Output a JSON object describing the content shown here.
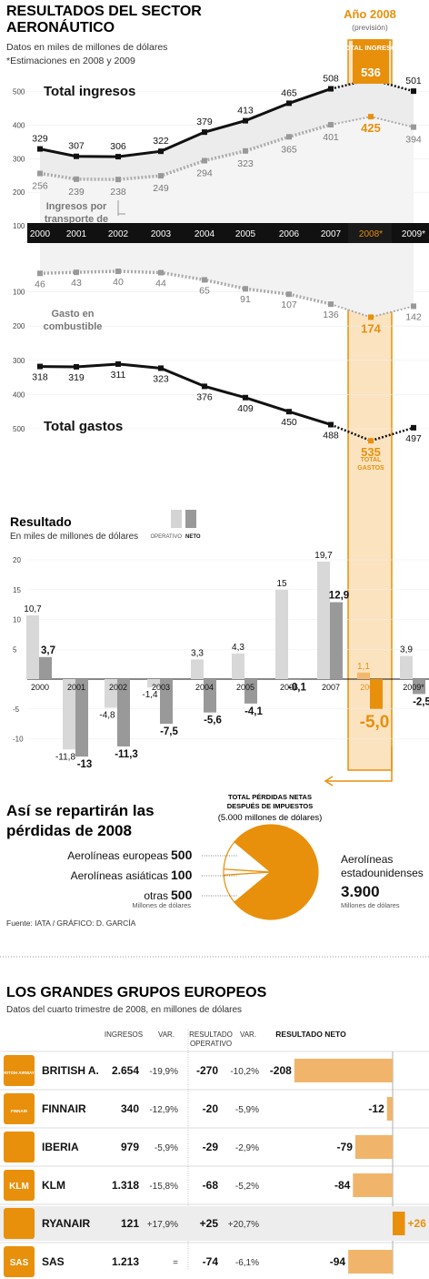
{
  "header": {
    "title_line1": "RESULTADOS DEL SECTOR",
    "title_line2": "AERONÁUTICO",
    "subtitle1": "Datos en miles de millones de dólares",
    "subtitle2": "*Estimaciones en 2008 y 2009",
    "highlight_title": "Año 2008",
    "highlight_sub": "(previsión)"
  },
  "colors": {
    "accent": "#e8900c",
    "accent_fill": "#fbe3c0",
    "dark": "#111111",
    "gray": "#999999",
    "light_gray": "#cfcfcf",
    "band": "#111111"
  },
  "chart_data": [
    {
      "type": "line",
      "x": [
        "2000",
        "2001",
        "2002",
        "2003",
        "2004",
        "2005",
        "2006",
        "2007",
        "2008*",
        "2009*"
      ],
      "ylim": [
        0,
        550
      ],
      "yticks": [
        "100",
        "200",
        "300",
        "400",
        "500"
      ],
      "series": [
        {
          "name": "Total ingresos",
          "values": [
            329,
            307,
            306,
            322,
            379,
            413,
            465,
            508,
            536,
            501
          ]
        },
        {
          "name": "Ingresos por transporte de pasajeros",
          "values": [
            256,
            239,
            238,
            249,
            294,
            323,
            365,
            401,
            425,
            394
          ]
        }
      ],
      "annotations": {
        "total_label": "TOTAL INGRESOS",
        "passenger_label": [
          "Ingresos por",
          "transporte de",
          "pasajeros"
        ]
      }
    },
    {
      "type": "line",
      "x": [
        "2000",
        "2001",
        "2002",
        "2003",
        "2004",
        "2005",
        "2006",
        "2007",
        "2008*",
        "2009*"
      ],
      "ylim": [
        0,
        550
      ],
      "yticks": [
        "100",
        "200",
        "300",
        "400",
        "500"
      ],
      "series": [
        {
          "name": "Total gastos",
          "values": [
            318,
            319,
            311,
            323,
            376,
            409,
            450,
            488,
            535,
            497
          ]
        },
        {
          "name": "Gasto en combustible",
          "values": [
            46,
            43,
            40,
            44,
            65,
            91,
            107,
            136,
            174,
            142
          ]
        }
      ],
      "annotations": {
        "total_label": [
          "TOTAL",
          "GASTOS"
        ],
        "fuel_label": [
          "Gasto en",
          "combustible"
        ]
      }
    },
    {
      "type": "bar",
      "title": "Resultado",
      "subtitle": "En miles de millones de dólares",
      "categories": [
        "2000",
        "2001",
        "2002",
        "2003",
        "2004",
        "2005",
        "2006",
        "2007",
        "2008*",
        "2009*"
      ],
      "legend": [
        "OPERATIVO",
        "NETO"
      ],
      "yticks": [
        "20",
        "15",
        "10",
        "5",
        "-5",
        "-10"
      ],
      "series": [
        {
          "name": "OPERATIVO",
          "values": [
            10.7,
            -11.8,
            -4.8,
            -1.4,
            3.3,
            4.3,
            15,
            19.7,
            1.1,
            3.9
          ],
          "labels": [
            "10,7",
            "-11,8",
            "-4,8",
            "-1,4",
            "3,3",
            "4,3",
            "15",
            "19,7",
            "1,1",
            "3,9"
          ]
        },
        {
          "name": "NETO",
          "values": [
            3.7,
            -13,
            -11.3,
            -7.5,
            -5.6,
            -4.1,
            -0.1,
            12.9,
            -5.0,
            -2.5
          ],
          "labels": [
            "3,7",
            "-13",
            "-11,3",
            "-7,5",
            "-5,6",
            "-4,1",
            "-0,1",
            "12,9",
            "-5,0",
            "-2,5"
          ]
        }
      ]
    },
    {
      "type": "pie",
      "title": [
        "Así se repartirán las",
        "pérdidas de 2008"
      ],
      "header": [
        "TOTAL PÉRDIDAS NETAS",
        "DESPUÉS DE IMPUESTOS",
        "(5.000 millones de dólares)"
      ],
      "slices": [
        {
          "label": "Aerolíneas europeas",
          "value": 500,
          "value_label": "500"
        },
        {
          "label": "Aerolíneas asiáticas",
          "value": 100,
          "value_label": "100"
        },
        {
          "label": "otras",
          "value": 500,
          "value_label": "500"
        },
        {
          "label": "Aerolíneas estadounidenses",
          "value": 3900,
          "value_label": "3.900"
        }
      ],
      "unit_left": "Millones de dólares",
      "unit_right": "Millones de dólares",
      "us_label": [
        "Aerolíneas",
        "estadounidenses"
      ]
    },
    {
      "type": "table",
      "title": "LOS GRANDES GRUPOS EUROPEOS",
      "subtitle": "Datos del cuarto trimestre de 2008, en millones de dólares",
      "columns": [
        "INGRESOS",
        "VAR.",
        "RESULTADO OPERATIVO",
        "VAR.",
        "RESULTADO NETO"
      ],
      "rows": [
        {
          "name": "BRITISH A.",
          "ingresos": "2.654",
          "var1": "-19,9%",
          "operativo": "-270",
          "var2": "-10,2%",
          "neto": -208,
          "neto_label": "-208",
          "logo": "british-airways-logo",
          "logo_text": "BRITISH AIRWAYS"
        },
        {
          "name": "FINNAIR",
          "ingresos": "340",
          "var1": "-12,9%",
          "operativo": "-20",
          "var2": "-5,9%",
          "neto": -12,
          "neto_label": "-12",
          "logo": "finnair-logo",
          "logo_text": "FINNAIR"
        },
        {
          "name": "IBERIA",
          "ingresos": "979",
          "var1": "-5,9%",
          "operativo": "-29",
          "var2": "-2,9%",
          "neto": -79,
          "neto_label": "-79",
          "logo": "iberia-logo",
          "logo_text": ""
        },
        {
          "name": "KLM",
          "ingresos": "1.318",
          "var1": "-15,8%",
          "operativo": "-68",
          "var2": "-5,2%",
          "neto": -84,
          "neto_label": "-84",
          "logo": "klm-logo",
          "logo_text": "KLM"
        },
        {
          "name": "RYANAIR",
          "ingresos": "121",
          "var1": "+17,9%",
          "operativo": "+25",
          "var2": "+20,7%",
          "neto": 26,
          "neto_label": "+26",
          "logo": "ryanair-logo",
          "logo_text": ""
        },
        {
          "name": "SAS",
          "ingresos": "1.213",
          "var1": "=",
          "operativo": "-74",
          "var2": "-6,1%",
          "neto": -94,
          "neto_label": "-94",
          "logo": "sas-logo",
          "logo_text": "SAS"
        }
      ]
    }
  ],
  "source": "Fuente: IATA / GRÁFICO: D. GARCÍA"
}
